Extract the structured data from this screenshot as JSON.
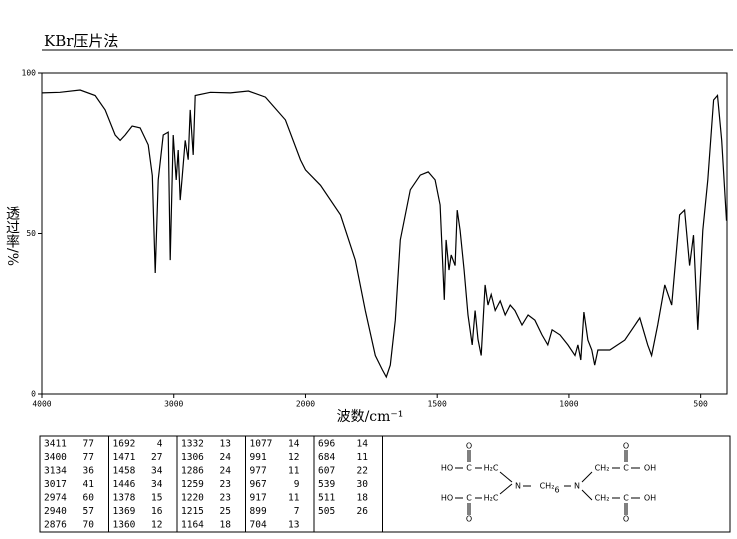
{
  "chart_data": {
    "type": "line",
    "title": "KBr压片法",
    "xlabel": "波数/cm⁻¹",
    "ylabel": "透过率/%",
    "xlim": [
      4000,
      400
    ],
    "x_scale_break": 2000,
    "xticks": [
      4000,
      3000,
      2000,
      1500,
      1000,
      500
    ],
    "ylim": [
      0,
      100
    ],
    "yticks": [
      0,
      50,
      100
    ],
    "series": [
      {
        "color": "#000000",
        "x": [
          4000,
          3863,
          3711,
          3597,
          3521,
          3445,
          3407,
          3369,
          3316,
          3255,
          3194,
          3163,
          3141,
          3118,
          3080,
          3042,
          3027,
          3004,
          2981,
          2966,
          2951,
          2935,
          2913,
          2890,
          2875,
          2852,
          2837,
          2722,
          2570,
          2433,
          2304,
          2152,
          2038,
          2000,
          1943,
          1867,
          1811,
          1773,
          1735,
          1708,
          1693,
          1678,
          1659,
          1640,
          1602,
          1564,
          1534,
          1508,
          1489,
          1473,
          1466,
          1455,
          1447,
          1432,
          1424,
          1413,
          1398,
          1383,
          1367,
          1356,
          1345,
          1333,
          1318,
          1307,
          1295,
          1280,
          1261,
          1242,
          1223,
          1205,
          1178,
          1155,
          1129,
          1102,
          1080,
          1064,
          1034,
          1004,
          977,
          966,
          955,
          943,
          928,
          913,
          902,
          890,
          845,
          788,
          731,
          701,
          686,
          663,
          636,
          610,
          580,
          561,
          542,
          527,
          511,
          492,
          473,
          451,
          436,
          420,
          402
        ],
        "values": [
          93.8,
          94,
          94.7,
          93,
          88.5,
          80.7,
          79,
          80.7,
          83.5,
          82.9,
          77.6,
          68,
          37.7,
          66.7,
          80.7,
          81.6,
          41.7,
          80.7,
          66.7,
          76,
          60.4,
          68,
          79,
          73,
          88.5,
          74.5,
          93,
          94,
          93.8,
          94.4,
          92.5,
          85.4,
          72.9,
          69.8,
          65,
          55.8,
          41.7,
          26,
          12,
          7.5,
          5.3,
          9,
          23,
          48,
          63.6,
          68.2,
          69.2,
          66.7,
          58.9,
          29.3,
          48,
          38.6,
          43.3,
          40,
          57.3,
          51,
          38.6,
          24.6,
          15.3,
          26,
          17,
          12,
          34,
          27.7,
          31,
          26,
          29,
          24.6,
          27.7,
          26,
          21.5,
          24.6,
          23,
          18.4,
          15.3,
          20,
          18.4,
          15.3,
          12,
          15.3,
          10.6,
          25.5,
          16.8,
          13.7,
          9,
          13.7,
          13.7,
          16.8,
          23.7,
          15.3,
          12,
          21.5,
          34,
          27.7,
          55.8,
          57.3,
          40,
          49.5,
          20,
          51,
          66.7,
          91.6,
          93,
          79,
          54
        ]
      }
    ]
  },
  "peak_table": [
    [
      3411,
      77
    ],
    [
      3400,
      77
    ],
    [
      3134,
      36
    ],
    [
      3017,
      41
    ],
    [
      2974,
      60
    ],
    [
      2940,
      57
    ],
    [
      2876,
      70
    ],
    [
      1692,
      4
    ],
    [
      1471,
      27
    ],
    [
      1458,
      34
    ],
    [
      1446,
      34
    ],
    [
      1378,
      15
    ],
    [
      1369,
      16
    ],
    [
      1360,
      12
    ],
    [
      1332,
      13
    ],
    [
      1306,
      24
    ],
    [
      1286,
      24
    ],
    [
      1259,
      23
    ],
    [
      1220,
      23
    ],
    [
      1215,
      25
    ],
    [
      1164,
      18
    ],
    [
      1077,
      14
    ],
    [
      991,
      12
    ],
    [
      977,
      11
    ],
    [
      967,
      9
    ],
    [
      917,
      11
    ],
    [
      899,
      7
    ],
    [
      704,
      13
    ],
    [
      696,
      14
    ],
    [
      684,
      11
    ],
    [
      607,
      22
    ],
    [
      539,
      30
    ],
    [
      511,
      18
    ],
    [
      505,
      26
    ]
  ],
  "structure": {
    "labels": [
      "O",
      "HO",
      "C",
      "H₂C",
      "N",
      "CH₂",
      "6",
      "N",
      "CH₂",
      "C",
      "OH",
      "O",
      "HO",
      "C",
      "H₂C",
      "O",
      "CH₂",
      "C",
      "OH",
      "O"
    ]
  }
}
